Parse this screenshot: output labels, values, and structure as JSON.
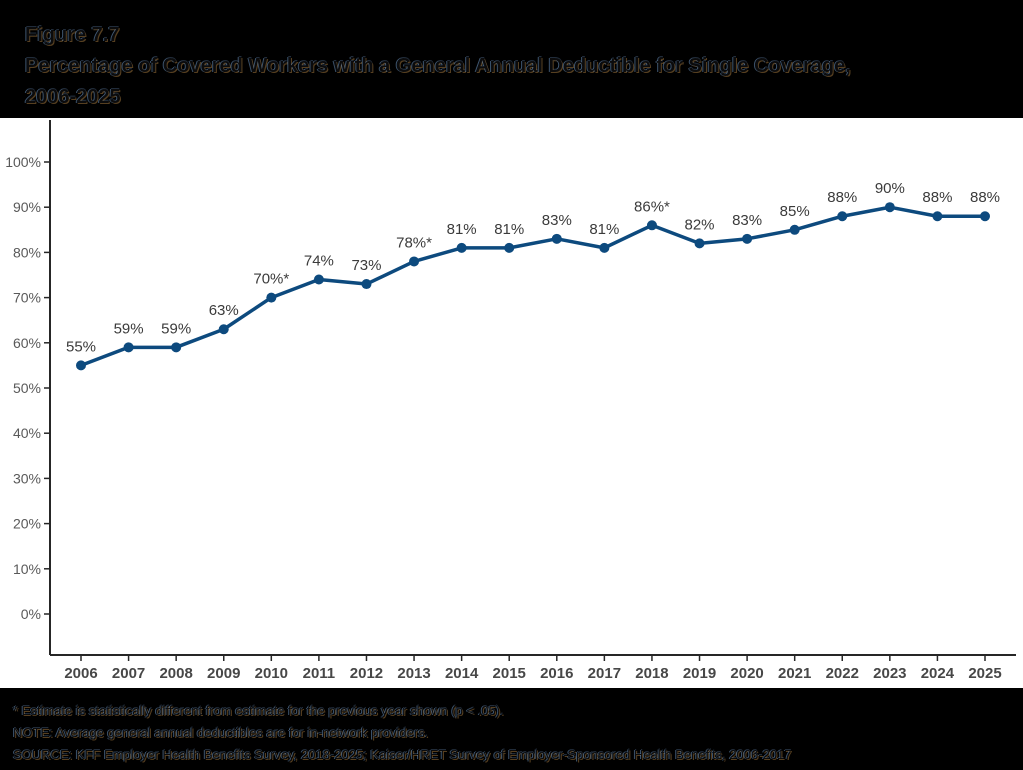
{
  "header": {
    "figure_label": "Figure 7.7",
    "title_line1": "Percentage of Covered Workers with a General Annual Deductible for Single Coverage,",
    "title_line2": "2006-2025"
  },
  "chart_data": {
    "type": "line",
    "title": "Percentage of Covered Workers with a General Annual Deductible for Single Coverage, 2006-2025",
    "categories": [
      "2006",
      "2007",
      "2008",
      "2009",
      "2010",
      "2011",
      "2012",
      "2013",
      "2014",
      "2015",
      "2016",
      "2017",
      "2018",
      "2019",
      "2020",
      "2021",
      "2022",
      "2023",
      "2024",
      "2025"
    ],
    "series": [
      {
        "name": "Covered workers with a general annual deductible",
        "values": [
          55,
          59,
          59,
          63,
          70,
          74,
          73,
          78,
          81,
          81,
          83,
          81,
          86,
          82,
          83,
          85,
          88,
          90,
          88,
          88
        ],
        "point_labels": [
          "55%",
          "59%",
          "59%",
          "63%",
          "70%*",
          "74%",
          "73%",
          "78%*",
          "81%",
          "81%",
          "83%",
          "81%",
          "86%*",
          "82%",
          "83%",
          "85%",
          "88%",
          "90%",
          "88%",
          "88%"
        ]
      }
    ],
    "xlabel": "",
    "ylabel": "",
    "ylim": [
      0,
      100
    ],
    "y_tick_values": [
      0,
      10,
      20,
      30,
      40,
      50,
      60,
      70,
      80,
      90,
      100
    ],
    "y_tick_labels": [
      "0%",
      "10%",
      "20%",
      "30%",
      "40%",
      "50%",
      "60%",
      "70%",
      "80%",
      "90%",
      "100%"
    ],
    "grid": false,
    "legend_position": "none",
    "line_color": "#0d4a7e",
    "point_color": "#0d4a7e",
    "data_label_color": "#3b3b3b",
    "axis_color": "#262626",
    "y_tick_label_color": "#595959",
    "x_tick_label_color": "#474747"
  },
  "footnotes": {
    "line1": "* Estimate is statistically different from estimate for the previous year shown (p < .05).",
    "line2": "NOTE: Average general annual deductibles are for in-network providers.",
    "line3": "SOURCE: KFF Employer Health Benefits Survey, 2018-2025; Kaiser/HRET Survey of Employer-Sponsored Health Benefits, 2006-2017"
  }
}
